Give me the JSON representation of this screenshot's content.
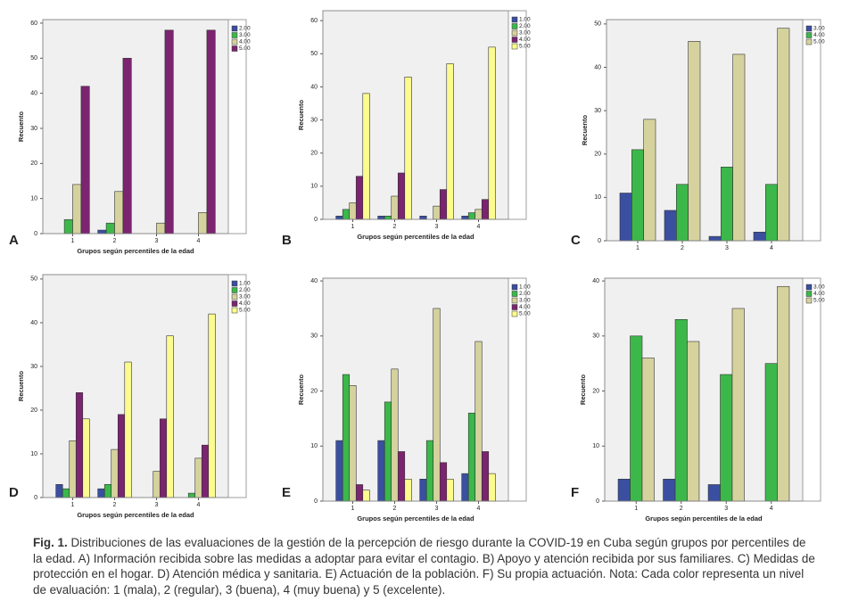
{
  "chart_data": [
    {
      "type": "bar",
      "label": "A",
      "x_label": "Grupos según percentiles de la edad",
      "y_label": "Recuento",
      "categories": [
        "1",
        "2",
        "3",
        "4"
      ],
      "ylim": [
        0,
        61
      ],
      "yticks": [
        0,
        10,
        20,
        30,
        40,
        50,
        60
      ],
      "series": [
        {
          "name": "2.00",
          "color": "#3b4fa0",
          "values": [
            0,
            1,
            0,
            0
          ]
        },
        {
          "name": "3.00",
          "color": "#3cb84a",
          "values": [
            4,
            3,
            0,
            0
          ]
        },
        {
          "name": "4.00",
          "color": "#d6d29e",
          "values": [
            14,
            12,
            3,
            6
          ]
        },
        {
          "name": "5.00",
          "color": "#7b2470",
          "values": [
            42,
            50,
            58,
            58
          ]
        }
      ]
    },
    {
      "type": "bar",
      "label": "B",
      "x_label": "Grupos según percentiles de la edad",
      "y_label": "Recuento",
      "categories": [
        "1",
        "2",
        "3",
        "4"
      ],
      "ylim": [
        0,
        63
      ],
      "yticks": [
        0,
        10,
        20,
        30,
        40,
        50,
        60
      ],
      "series": [
        {
          "name": "1.00",
          "color": "#3b4fa0",
          "values": [
            1,
            1,
            1,
            1
          ]
        },
        {
          "name": "2.00",
          "color": "#3cb84a",
          "values": [
            3,
            1,
            0,
            2
          ]
        },
        {
          "name": "3.00",
          "color": "#d6d29e",
          "values": [
            5,
            7,
            4,
            3
          ]
        },
        {
          "name": "4.00",
          "color": "#7b2470",
          "values": [
            13,
            14,
            9,
            6
          ]
        },
        {
          "name": "5.00",
          "color": "#fbfb8e",
          "values": [
            38,
            43,
            47,
            52
          ]
        }
      ]
    },
    {
      "type": "bar",
      "label": "C",
      "y_label": "Recuento",
      "categories": [
        "1",
        "2",
        "3",
        "4"
      ],
      "ylim": [
        0,
        51
      ],
      "yticks": [
        0,
        10,
        20,
        30,
        40,
        50
      ],
      "series": [
        {
          "name": "3.00",
          "color": "#3b4fa0",
          "values": [
            11,
            7,
            1,
            2
          ]
        },
        {
          "name": "4.00",
          "color": "#3cb84a",
          "values": [
            21,
            13,
            17,
            13
          ]
        },
        {
          "name": "5.00",
          "color": "#d6d29e",
          "values": [
            28,
            46,
            43,
            49
          ]
        }
      ]
    },
    {
      "type": "bar",
      "label": "D",
      "x_label": "Grupos según percentiles de la edad",
      "y_label": "Recuento",
      "categories": [
        "1",
        "2",
        "3",
        "4"
      ],
      "ylim": [
        0,
        51
      ],
      "yticks": [
        0,
        10,
        20,
        30,
        40,
        50
      ],
      "series": [
        {
          "name": "1.00",
          "color": "#3b4fa0",
          "values": [
            3,
            2,
            0,
            0
          ]
        },
        {
          "name": "2.00",
          "color": "#3cb84a",
          "values": [
            2,
            3,
            0,
            1
          ]
        },
        {
          "name": "3.00",
          "color": "#d6d29e",
          "values": [
            13,
            11,
            6,
            9
          ]
        },
        {
          "name": "4.00",
          "color": "#7b2470",
          "values": [
            24,
            19,
            18,
            12
          ]
        },
        {
          "name": "5.00",
          "color": "#fbfb8e",
          "values": [
            18,
            31,
            37,
            42
          ]
        }
      ]
    },
    {
      "type": "bar",
      "label": "E",
      "x_label": "Grupos según percentiles de la edad",
      "y_label": "Recuento",
      "categories": [
        "1",
        "2",
        "3",
        "4"
      ],
      "ylim": [
        0,
        40.5
      ],
      "yticks": [
        0,
        10,
        20,
        30,
        40
      ],
      "series": [
        {
          "name": "1.00",
          "color": "#3b4fa0",
          "values": [
            11,
            11,
            4,
            5
          ]
        },
        {
          "name": "2.00",
          "color": "#3cb84a",
          "values": [
            23,
            18,
            11,
            16
          ]
        },
        {
          "name": "3.00",
          "color": "#d6d29e",
          "values": [
            21,
            24,
            35,
            29
          ]
        },
        {
          "name": "4.00",
          "color": "#7b2470",
          "values": [
            3,
            9,
            7,
            9
          ]
        },
        {
          "name": "5.00",
          "color": "#fbfb8e",
          "values": [
            2,
            4,
            4,
            5
          ]
        }
      ]
    },
    {
      "type": "bar",
      "label": "F",
      "x_label": "Grupos según percentiles de la edad",
      "y_label": "Recuento",
      "categories": [
        "1",
        "2",
        "3",
        "4"
      ],
      "ylim": [
        0,
        40.5
      ],
      "yticks": [
        0,
        10,
        20,
        30,
        40
      ],
      "series": [
        {
          "name": "3.00",
          "color": "#3b4fa0",
          "values": [
            4,
            4,
            3,
            0
          ]
        },
        {
          "name": "4.00",
          "color": "#3cb84a",
          "values": [
            30,
            33,
            23,
            25
          ]
        },
        {
          "name": "5.00",
          "color": "#d6d29e",
          "values": [
            26,
            29,
            35,
            39
          ]
        }
      ]
    }
  ],
  "caption": {
    "label": "Fig. 1.",
    "text": "Distribuciones de las evaluaciones de la gestión de la percepción de riesgo durante la COVID-19 en Cuba según grupos por percentiles de la edad. A) Información recibida sobre las medidas a adoptar para evitar el contagio. B) Apoyo y atención recibida por sus familiares. C) Medidas de protección en el hogar. D) Atención médica y sanitaria. E) Actuación de la población. F) Su propia actuación.  Nota: Cada color representa un nivel de evaluación: 1 (mala), 2 (regular), 3 (buena), 4 (muy buena) y 5 (excelente)."
  }
}
